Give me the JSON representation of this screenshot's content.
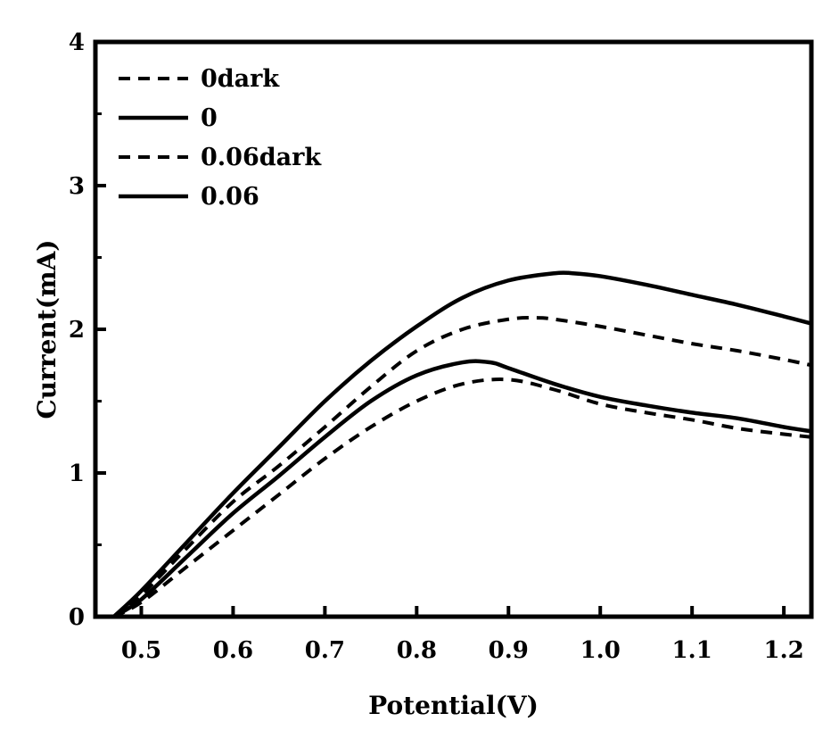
{
  "chart_data": {
    "type": "line",
    "title": "",
    "xlabel": "Potential(V)",
    "ylabel": "Current(mA)",
    "xlim": [
      0.45,
      1.23
    ],
    "ylim": [
      0,
      4
    ],
    "xticks": [
      0.5,
      0.6,
      0.7,
      0.8,
      0.9,
      1.0,
      1.1,
      1.2
    ],
    "xtick_labels": [
      "0.5",
      "0.6",
      "0.7",
      "0.8",
      "0.9",
      "1.0",
      "1.1",
      "1.2"
    ],
    "yticks": [
      0,
      1,
      2,
      3,
      4
    ],
    "ytick_labels": [
      "0",
      "1",
      "2",
      "3",
      "4"
    ],
    "grid": false,
    "legend_position": "top-left",
    "series": [
      {
        "name": "0dark",
        "style": "dashed",
        "color": "#000000",
        "x": [
          0.47,
          0.5,
          0.55,
          0.6,
          0.65,
          0.7,
          0.75,
          0.8,
          0.85,
          0.9,
          0.95,
          1.0,
          1.05,
          1.1,
          1.15,
          1.2,
          1.23
        ],
        "y": [
          0.0,
          0.1,
          0.35,
          0.6,
          0.85,
          1.1,
          1.32,
          1.5,
          1.62,
          1.65,
          1.58,
          1.48,
          1.42,
          1.37,
          1.31,
          1.27,
          1.25
        ]
      },
      {
        "name": "0",
        "style": "solid",
        "color": "#000000",
        "x": [
          0.47,
          0.5,
          0.55,
          0.6,
          0.65,
          0.7,
          0.75,
          0.8,
          0.85,
          0.88,
          0.9,
          0.95,
          1.0,
          1.05,
          1.1,
          1.15,
          1.2,
          1.23
        ],
        "y": [
          0.0,
          0.12,
          0.42,
          0.72,
          0.98,
          1.25,
          1.5,
          1.68,
          1.77,
          1.77,
          1.73,
          1.62,
          1.53,
          1.47,
          1.42,
          1.38,
          1.32,
          1.29
        ]
      },
      {
        "name": "0.06dark",
        "style": "dashed",
        "color": "#000000",
        "x": [
          0.47,
          0.5,
          0.55,
          0.6,
          0.65,
          0.7,
          0.75,
          0.8,
          0.85,
          0.9,
          0.93,
          0.95,
          1.0,
          1.05,
          1.1,
          1.15,
          1.2,
          1.23
        ],
        "y": [
          0.0,
          0.15,
          0.48,
          0.8,
          1.05,
          1.32,
          1.6,
          1.85,
          2.0,
          2.07,
          2.08,
          2.07,
          2.02,
          1.96,
          1.9,
          1.85,
          1.79,
          1.75
        ]
      },
      {
        "name": "0.06",
        "style": "solid",
        "color": "#000000",
        "x": [
          0.47,
          0.5,
          0.55,
          0.6,
          0.65,
          0.7,
          0.75,
          0.8,
          0.85,
          0.9,
          0.95,
          0.97,
          1.0,
          1.05,
          1.1,
          1.15,
          1.2,
          1.23
        ],
        "y": [
          0.0,
          0.18,
          0.52,
          0.86,
          1.18,
          1.5,
          1.78,
          2.02,
          2.22,
          2.34,
          2.39,
          2.39,
          2.37,
          2.31,
          2.24,
          2.17,
          2.09,
          2.04
        ]
      }
    ]
  }
}
